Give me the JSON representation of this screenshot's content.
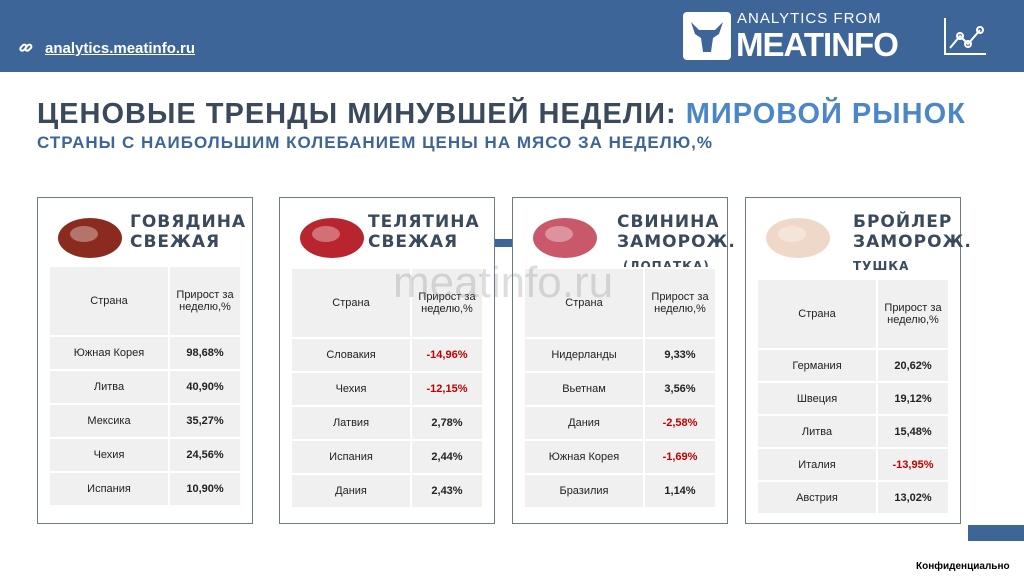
{
  "header": {
    "link": "analytics.meatinfo.ru",
    "logo_small": "ANALYTICS FROM",
    "logo_big": "MEATINFO"
  },
  "title": {
    "main": "ЦЕНОВЫЕ ТРЕНДЫ МИНУВШЕЙ НЕДЕЛИ:",
    "highlight": "МИРОВОЙ РЫНОК",
    "subtitle": "СТРАНЫ С НАИБОЛЬШИМ КОЛЕБАНИЕМ ЦЕНЫ НА МЯСО ЗА НЕДЕЛЮ,%"
  },
  "watermark": "meatinfo.ru",
  "cards": [
    {
      "title": [
        "ГОВЯДИНА",
        "СВЕЖАЯ"
      ],
      "headers": [
        "Страна",
        "Прирост за неделю,%"
      ],
      "rows": [
        [
          "Южная Корея",
          "98,68%"
        ],
        [
          "Литва",
          "40,90%"
        ],
        [
          "Мексика",
          "35,27%"
        ],
        [
          "Чехия",
          "24,56%"
        ],
        [
          "Испания",
          "10,90%"
        ]
      ]
    },
    {
      "title": [
        "ТЕЛЯТИНА",
        "СВЕЖАЯ"
      ],
      "headers": [
        "Страна",
        "Прирост за неделю,%"
      ],
      "rows": [
        [
          "Словакия",
          "-14,96%"
        ],
        [
          "Чехия",
          "-12,15%"
        ],
        [
          "Латвия",
          "2,78%"
        ],
        [
          "Испания",
          "2,44%"
        ],
        [
          "Дания",
          "2,43%"
        ]
      ]
    },
    {
      "title": [
        "СВИНИНА",
        "ЗАМОРОЖ."
      ],
      "note": "(ЛОПАТКА)",
      "headers": [
        "Страна",
        "Прирост за неделю,%"
      ],
      "rows": [
        [
          "Нидерланды",
          "9,33%"
        ],
        [
          "Вьетнам",
          "3,56%"
        ],
        [
          "Дания",
          "-2,58%"
        ],
        [
          "Южная Корея",
          "-1,69%"
        ],
        [
          "Бразилия",
          "1,14%"
        ]
      ]
    },
    {
      "title": [
        "БРОЙЛЕР",
        "ЗАМОРОЖ."
      ],
      "note": "ТУШКА",
      "headers": [
        "Страна",
        "Прирост за неделю,%"
      ],
      "rows": [
        [
          "Германия",
          "20,62%"
        ],
        [
          "Швеция",
          "19,12%"
        ],
        [
          "Литва",
          "15,48%"
        ],
        [
          "Италия",
          "-13,95%"
        ],
        [
          "Австрия",
          "13,02%"
        ]
      ]
    }
  ],
  "footer": "Конфиденциально"
}
